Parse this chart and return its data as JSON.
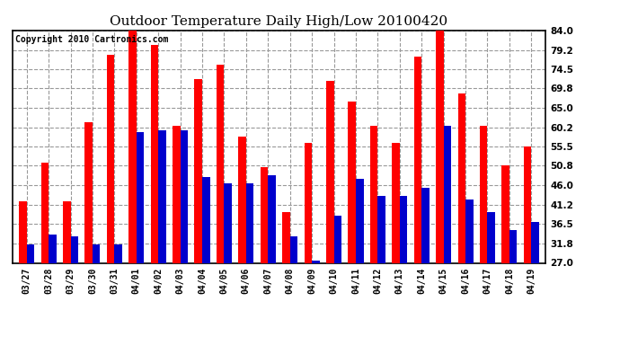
{
  "title": "Outdoor Temperature Daily High/Low 20100420",
  "copyright": "Copyright 2010 Cartronics.com",
  "dates": [
    "03/27",
    "03/28",
    "03/29",
    "03/30",
    "03/31",
    "04/01",
    "04/02",
    "04/03",
    "04/04",
    "04/05",
    "04/06",
    "04/07",
    "04/08",
    "04/09",
    "04/10",
    "04/11",
    "04/12",
    "04/13",
    "04/14",
    "04/15",
    "04/16",
    "04/17",
    "04/18",
    "04/19"
  ],
  "highs": [
    42.0,
    51.5,
    42.0,
    61.5,
    78.0,
    84.0,
    80.5,
    60.5,
    72.0,
    75.5,
    58.0,
    50.5,
    39.5,
    56.5,
    71.5,
    66.5,
    60.5,
    56.5,
    77.5,
    84.0,
    68.5,
    60.5,
    50.8,
    55.5
  ],
  "lows": [
    31.5,
    34.0,
    33.5,
    31.5,
    31.5,
    59.0,
    59.5,
    59.5,
    48.0,
    46.5,
    46.5,
    48.5,
    33.5,
    27.5,
    38.5,
    47.5,
    43.5,
    43.5,
    45.5,
    60.5,
    42.5,
    39.5,
    35.0,
    37.0
  ],
  "ylim": [
    27.0,
    84.0
  ],
  "yticks": [
    27.0,
    31.8,
    36.5,
    41.2,
    46.0,
    50.8,
    55.5,
    60.2,
    65.0,
    69.8,
    74.5,
    79.2,
    84.0
  ],
  "high_color": "#ff0000",
  "low_color": "#0000cc",
  "bg_color": "#ffffff",
  "grid_color": "#999999",
  "title_fontsize": 11,
  "copyright_fontsize": 7,
  "bar_width": 0.35
}
